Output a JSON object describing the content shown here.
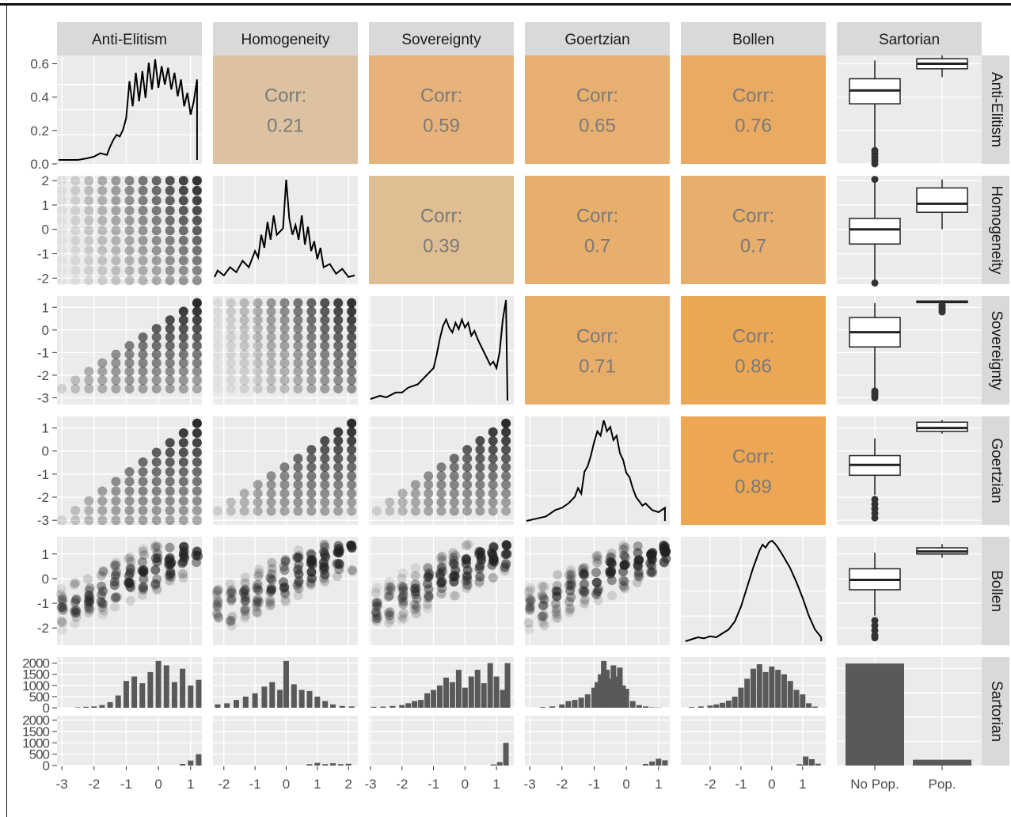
{
  "chart_data": {
    "type": "scatter",
    "variables": [
      "Anti-Elitism",
      "Homogeneity",
      "Sovereignty",
      "Goertzian",
      "Bollen",
      "Sartorian"
    ],
    "correlations": [
      {
        "row": "Anti-Elitism",
        "col": "Homogeneity",
        "label": "Corr:",
        "value": "0.21"
      },
      {
        "row": "Anti-Elitism",
        "col": "Sovereignty",
        "label": "Corr:",
        "value": "0.59"
      },
      {
        "row": "Anti-Elitism",
        "col": "Goertzian",
        "label": "Corr:",
        "value": "0.65"
      },
      {
        "row": "Anti-Elitism",
        "col": "Bollen",
        "label": "Corr:",
        "value": "0.76"
      },
      {
        "row": "Homogeneity",
        "col": "Sovereignty",
        "label": "Corr:",
        "value": "0.39"
      },
      {
        "row": "Homogeneity",
        "col": "Goertzian",
        "label": "Corr:",
        "value": "0.7"
      },
      {
        "row": "Homogeneity",
        "col": "Bollen",
        "label": "Corr:",
        "value": "0.7"
      },
      {
        "row": "Sovereignty",
        "col": "Goertzian",
        "label": "Corr:",
        "value": "0.71"
      },
      {
        "row": "Sovereignty",
        "col": "Bollen",
        "label": "Corr:",
        "value": "0.86"
      },
      {
        "row": "Goertzian",
        "col": "Bollen",
        "label": "Corr:",
        "value": "0.89"
      }
    ],
    "correlation_colors": {
      "0.21": "#dcc2a1",
      "0.39": "#e0be93",
      "0.59": "#e7b37a",
      "0.65": "#e8b070",
      "0.7": "#e8ae6c",
      "0.71": "#e9ad6a",
      "0.76": "#eaaa62",
      "0.86": "#eca755",
      "0.89": "#eda653"
    },
    "y_ticks": {
      "Anti-Elitism": {
        "ticks": [
          "0.6",
          "0.4",
          "0.2",
          "0.0"
        ],
        "values": [
          0.6,
          0.4,
          0.2,
          0.0
        ],
        "ylim": [
          0,
          0.65
        ]
      },
      "Homogeneity": {
        "ticks": [
          "2",
          "1",
          "0",
          "-1",
          "-2"
        ],
        "values": [
          2,
          1,
          0,
          -1,
          -2
        ],
        "ylim": [
          -2.25,
          2.2
        ]
      },
      "Sovereignty": {
        "ticks": [
          "1",
          "0",
          "-1",
          "-2",
          "-3"
        ],
        "values": [
          1,
          0,
          -1,
          -2,
          -3
        ],
        "ylim": [
          -3.3,
          1.5
        ]
      },
      "Goertzian": {
        "ticks": [
          "1",
          "0",
          "-1",
          "-2",
          "-3"
        ],
        "values": [
          1,
          0,
          -1,
          -2,
          -3
        ],
        "ylim": [
          -3.2,
          1.5
        ]
      },
      "Bollen": {
        "ticks": [
          "1",
          "0",
          "-1",
          "-2"
        ],
        "values": [
          1,
          0,
          -1,
          -2
        ],
        "ylim": [
          -2.7,
          1.7
        ]
      },
      "Sartorian": {
        "ticks": [
          "2000",
          "1500",
          "1000",
          "500",
          "0"
        ],
        "values": [
          2000,
          1500,
          1000,
          500,
          0
        ],
        "ylim": [
          0,
          2200
        ]
      }
    },
    "x_ticks": {
      "Anti-Elitism": {
        "ticks": [
          "-3",
          "-2",
          "-1",
          "0",
          "1"
        ],
        "values": [
          -3,
          -2,
          -1,
          0,
          1
        ],
        "xlim": [
          -3.15,
          1.35
        ]
      },
      "Homogeneity": {
        "ticks": [
          "-2",
          "-1",
          "0",
          "1",
          "2"
        ],
        "values": [
          -2,
          -1,
          0,
          1,
          2
        ],
        "xlim": [
          -2.35,
          2.3
        ]
      },
      "Sovereignty": {
        "ticks": [
          "-3",
          "-2",
          "-1",
          "0",
          "1"
        ],
        "values": [
          -3,
          -2,
          -1,
          0,
          1
        ],
        "xlim": [
          -3.05,
          1.55
        ]
      },
      "Goertzian": {
        "ticks": [
          "-3",
          "-2",
          "-1",
          "0",
          "1"
        ],
        "values": [
          -3,
          -2,
          -1,
          0,
          1
        ],
        "xlim": [
          -3.15,
          1.35
        ]
      },
      "Bollen": {
        "ticks": [
          "-2",
          "-1",
          "0",
          "1"
        ],
        "values": [
          -2,
          -1,
          0,
          1
        ],
        "xlim": [
          -2.95,
          1.75
        ]
      },
      "Sartorian": {
        "ticks": [
          "No Pop.",
          "Pop."
        ]
      }
    },
    "densities": {
      "Anti-Elitism": {
        "x": [
          -3.1,
          -2.5,
          -2.2,
          -2.0,
          -1.8,
          -1.6,
          -1.5,
          -1.4,
          -1.3,
          -1.2,
          -1.1,
          -1.0,
          -0.9,
          -0.8,
          -0.7,
          -0.6,
          -0.5,
          -0.4,
          -0.3,
          -0.2,
          -0.1,
          0.0,
          0.1,
          0.2,
          0.3,
          0.4,
          0.5,
          0.6,
          0.7,
          0.8,
          0.9,
          1.0,
          1.1,
          1.2,
          1.2
        ],
        "y": [
          0.0,
          0.0,
          0.01,
          0.02,
          0.04,
          0.03,
          0.08,
          0.12,
          0.15,
          0.14,
          0.18,
          0.25,
          0.47,
          0.32,
          0.52,
          0.35,
          0.53,
          0.37,
          0.58,
          0.42,
          0.6,
          0.43,
          0.56,
          0.45,
          0.55,
          0.42,
          0.52,
          0.38,
          0.48,
          0.32,
          0.4,
          0.27,
          0.35,
          0.48,
          0.0
        ]
      },
      "Homogeneity": {
        "x": [
          -2.3,
          -2.2,
          -2.0,
          -1.8,
          -1.6,
          -1.4,
          -1.2,
          -1.0,
          -0.9,
          -0.8,
          -0.7,
          -0.6,
          -0.5,
          -0.4,
          -0.3,
          -0.2,
          -0.1,
          0.0,
          0.1,
          0.2,
          0.3,
          0.4,
          0.5,
          0.6,
          0.7,
          0.8,
          0.9,
          1.0,
          1.1,
          1.2,
          1.4,
          1.6,
          1.8,
          2.0,
          2.2
        ],
        "y": [
          0.02,
          0.06,
          0.03,
          0.08,
          0.05,
          0.12,
          0.08,
          0.18,
          0.14,
          0.28,
          0.2,
          0.36,
          0.25,
          0.4,
          0.28,
          0.3,
          0.32,
          0.62,
          0.38,
          0.28,
          0.34,
          0.25,
          0.4,
          0.22,
          0.33,
          0.18,
          0.24,
          0.13,
          0.2,
          0.08,
          0.1,
          0.04,
          0.07,
          0.02,
          0.03
        ]
      },
      "Sovereignty": {
        "x": [
          -3.0,
          -2.7,
          -2.5,
          -2.2,
          -2.0,
          -1.8,
          -1.5,
          -1.3,
          -1.0,
          -0.9,
          -0.8,
          -0.7,
          -0.6,
          -0.5,
          -0.4,
          -0.3,
          -0.2,
          -0.1,
          0.0,
          0.1,
          0.2,
          0.3,
          0.4,
          0.5,
          0.6,
          0.7,
          0.8,
          0.9,
          1.0,
          1.1,
          1.2,
          1.3,
          1.35
        ],
        "y": [
          0.01,
          0.03,
          0.02,
          0.05,
          0.05,
          0.08,
          0.1,
          0.14,
          0.2,
          0.28,
          0.38,
          0.46,
          0.5,
          0.45,
          0.42,
          0.48,
          0.44,
          0.5,
          0.45,
          0.48,
          0.4,
          0.43,
          0.38,
          0.34,
          0.3,
          0.26,
          0.22,
          0.24,
          0.2,
          0.3,
          0.5,
          0.62,
          0.0
        ]
      },
      "Goertzian": {
        "x": [
          -3.1,
          -2.8,
          -2.5,
          -2.2,
          -2.0,
          -1.8,
          -1.6,
          -1.5,
          -1.4,
          -1.3,
          -1.2,
          -1.1,
          -1.0,
          -0.9,
          -0.8,
          -0.7,
          -0.6,
          -0.5,
          -0.4,
          -0.3,
          -0.2,
          -0.1,
          0.0,
          0.1,
          0.2,
          0.3,
          0.4,
          0.5,
          0.6,
          0.8,
          1.0,
          1.2,
          1.2
        ],
        "y": [
          0.0,
          0.02,
          0.04,
          0.1,
          0.12,
          0.16,
          0.22,
          0.3,
          0.25,
          0.45,
          0.5,
          0.6,
          0.72,
          0.82,
          0.78,
          0.92,
          0.82,
          0.86,
          0.74,
          0.78,
          0.62,
          0.56,
          0.44,
          0.4,
          0.3,
          0.22,
          0.18,
          0.14,
          0.16,
          0.1,
          0.08,
          0.12,
          0.0
        ]
      },
      "Bollen": {
        "x": [
          -2.8,
          -2.6,
          -2.4,
          -2.2,
          -2.0,
          -1.8,
          -1.6,
          -1.4,
          -1.2,
          -1.0,
          -0.8,
          -0.6,
          -0.4,
          -0.3,
          -0.2,
          -0.1,
          0.0,
          0.1,
          0.2,
          0.3,
          0.4,
          0.6,
          0.8,
          1.0,
          1.2,
          1.4,
          1.6,
          1.6
        ],
        "y": [
          0.0,
          0.02,
          0.04,
          0.03,
          0.05,
          0.04,
          0.08,
          0.12,
          0.2,
          0.35,
          0.55,
          0.75,
          0.92,
          0.98,
          0.95,
          1.0,
          1.02,
          0.99,
          0.95,
          0.9,
          0.85,
          0.74,
          0.6,
          0.44,
          0.26,
          0.12,
          0.04,
          0.0
        ]
      }
    },
    "sartorian_groups": [
      "No Pop.",
      "Pop."
    ],
    "sartorian_counts": [
      2100,
      120
    ],
    "boxplots": {
      "Anti-Elitism": {
        "No Pop.": {
          "min": 0.02,
          "q1": 0.36,
          "median": 0.44,
          "q3": 0.51,
          "max": 0.62,
          "outliers": [
            0.0,
            0.02,
            0.04,
            0.06,
            0.08
          ]
        },
        "Pop.": {
          "min": 0.52,
          "q1": 0.57,
          "median": 0.6,
          "q3": 0.63,
          "max": 0.65,
          "outliers": []
        }
      },
      "Homogeneity": {
        "No Pop.": {
          "min": -2.1,
          "q1": -0.6,
          "median": 0.0,
          "q3": 0.45,
          "max": 1.95,
          "outliers": [
            2.05,
            -2.2
          ]
        },
        "Pop.": {
          "min": 0.0,
          "q1": 0.7,
          "median": 1.05,
          "q3": 1.7,
          "max": 2.05,
          "outliers": []
        }
      },
      "Sovereignty": {
        "No Pop.": {
          "min": -2.6,
          "q1": -0.75,
          "median": -0.1,
          "q3": 0.55,
          "max": 1.2,
          "outliers": [
            -2.7,
            -2.8,
            -2.9,
            -3.0
          ]
        },
        "Pop.": {
          "min": 1.2,
          "q1": 1.22,
          "median": 1.24,
          "q3": 1.28,
          "max": 1.32,
          "outliers": [
            1.1,
            1.0,
            0.9,
            0.8
          ]
        }
      },
      "Goertzian": {
        "No Pop.": {
          "min": -1.9,
          "q1": -1.05,
          "median": -0.6,
          "q3": -0.2,
          "max": 0.55,
          "outliers": [
            -2.1,
            -2.3,
            -2.5,
            -2.7,
            -2.9
          ]
        },
        "Pop.": {
          "min": 0.75,
          "q1": 0.85,
          "median": 1.0,
          "q3": 1.25,
          "max": 1.35,
          "outliers": []
        }
      },
      "Bollen": {
        "No Pop.": {
          "min": -1.5,
          "q1": -0.45,
          "median": -0.05,
          "q3": 0.4,
          "max": 1.05,
          "outliers": [
            -1.7,
            -1.9,
            -2.1,
            -2.3,
            -2.4
          ]
        },
        "Pop.": {
          "min": 0.85,
          "q1": 1.0,
          "median": 1.1,
          "q3": 1.25,
          "max": 1.4,
          "outliers": []
        }
      }
    },
    "histograms_no_pop": {
      "Anti-Elitism": {
        "x": [
          -2.5,
          -2.25,
          -2.0,
          -1.75,
          -1.5,
          -1.25,
          -1.0,
          -0.75,
          -0.5,
          -0.25,
          0.0,
          0.25,
          0.5,
          0.75,
          1.0,
          1.25
        ],
        "counts": [
          20,
          40,
          60,
          120,
          250,
          550,
          1200,
          1400,
          1100,
          1600,
          2100,
          1900,
          1150,
          1750,
          1000,
          1250
        ]
      },
      "Homogeneity": {
        "x": [
          -2.2,
          -1.9,
          -1.6,
          -1.3,
          -1.0,
          -0.7,
          -0.45,
          -0.2,
          0.0,
          0.25,
          0.5,
          0.75,
          1.0,
          1.25,
          1.5,
          1.8,
          2.1
        ],
        "counts": [
          150,
          200,
          350,
          500,
          650,
          950,
          1150,
          800,
          2100,
          1050,
          800,
          750,
          500,
          300,
          150,
          80,
          60
        ]
      },
      "Sovereignty": {
        "x": [
          -2.9,
          -2.6,
          -2.3,
          -2.0,
          -1.8,
          -1.6,
          -1.4,
          -1.2,
          -1.0,
          -0.8,
          -0.6,
          -0.4,
          -0.2,
          0.0,
          0.2,
          0.4,
          0.6,
          0.8,
          1.0,
          1.2,
          1.35
        ],
        "counts": [
          40,
          50,
          80,
          120,
          200,
          300,
          350,
          650,
          800,
          1000,
          1350,
          1150,
          1700,
          900,
          1400,
          1700,
          1100,
          2000,
          1400,
          800,
          2000
        ]
      },
      "Goertzian": {
        "x": [
          -2.6,
          -2.3,
          -2.0,
          -1.8,
          -1.6,
          -1.4,
          -1.2,
          -1.0,
          -0.9,
          -0.8,
          -0.7,
          -0.6,
          -0.5,
          -0.4,
          -0.3,
          -0.2,
          -0.1,
          0.0,
          0.2,
          0.4,
          0.6,
          0.8,
          1.0
        ],
        "counts": [
          30,
          60,
          150,
          300,
          350,
          450,
          600,
          900,
          1150,
          1500,
          2100,
          1700,
          1300,
          1900,
          1400,
          1800,
          1000,
          850,
          300,
          120,
          60,
          20,
          10
        ]
      },
      "Bollen": {
        "x": [
          -2.6,
          -2.3,
          -2.0,
          -1.8,
          -1.6,
          -1.4,
          -1.2,
          -1.0,
          -0.8,
          -0.6,
          -0.4,
          -0.2,
          0.0,
          0.2,
          0.4,
          0.6,
          0.8,
          1.0,
          1.2,
          1.4
        ],
        "counts": [
          30,
          60,
          100,
          150,
          220,
          320,
          500,
          900,
          1300,
          1750,
          1950,
          1600,
          1850,
          1700,
          1500,
          1200,
          800,
          600,
          200,
          50
        ]
      }
    },
    "histograms_pop": {
      "Anti-Elitism": {
        "x": [
          0.75,
          1.0,
          1.25
        ],
        "counts": [
          70,
          220,
          500
        ]
      },
      "Homogeneity": {
        "x": [
          0.75,
          1.0,
          1.25,
          1.5,
          1.75,
          2.0
        ],
        "counts": [
          60,
          120,
          60,
          100,
          60,
          80
        ]
      },
      "Sovereignty": {
        "x": [
          0.9,
          1.1,
          1.3
        ],
        "counts": [
          50,
          150,
          1000
        ]
      },
      "Goertzian": {
        "x": [
          0.6,
          0.8,
          1.0,
          1.2
        ],
        "counts": [
          70,
          180,
          300,
          230
        ]
      },
      "Bollen": {
        "x": [
          0.9,
          1.1,
          1.3,
          1.5
        ],
        "counts": [
          60,
          400,
          280,
          80
        ]
      }
    },
    "scatter_extents": {
      "Homogeneity|Anti-Elitism": {
        "xmin": -3.0,
        "xmax": 1.2,
        "ymin": -2.1,
        "ymax": 2.0,
        "type": "grid"
      },
      "Sovereignty|Anti-Elitism": {
        "xmin": -3.0,
        "xmax": 1.2,
        "ymin": -2.6,
        "ymax": 1.2,
        "type": "lower"
      },
      "Sovereignty|Homogeneity": {
        "xmin": -2.2,
        "xmax": 2.1,
        "ymin": -2.6,
        "ymax": 1.2,
        "type": "grid"
      },
      "Goertzian|Anti-Elitism": {
        "xmin": -3.0,
        "xmax": 1.2,
        "ymin": -3.0,
        "ymax": 1.2,
        "type": "lower"
      },
      "Goertzian|Homogeneity": {
        "xmin": -2.2,
        "xmax": 2.1,
        "ymin": -2.6,
        "ymax": 1.2,
        "type": "lower"
      },
      "Goertzian|Sovereignty": {
        "xmin": -2.8,
        "xmax": 1.3,
        "ymin": -2.6,
        "ymax": 1.2,
        "type": "lower"
      },
      "Bollen|Anti-Elitism": {
        "xmin": -3.0,
        "xmax": 1.2,
        "ymin": -2.1,
        "ymax": 1.4,
        "type": "band"
      },
      "Bollen|Homogeneity": {
        "xmin": -2.2,
        "xmax": 2.1,
        "ymin": -2.1,
        "ymax": 1.4,
        "type": "band"
      },
      "Bollen|Sovereignty": {
        "xmin": -2.8,
        "xmax": 1.3,
        "ymin": -2.1,
        "ymax": 1.4,
        "type": "band"
      },
      "Bollen|Goertzian": {
        "xmin": -3.0,
        "xmax": 1.2,
        "ymin": -2.1,
        "ymax": 1.4,
        "type": "band"
      }
    }
  }
}
